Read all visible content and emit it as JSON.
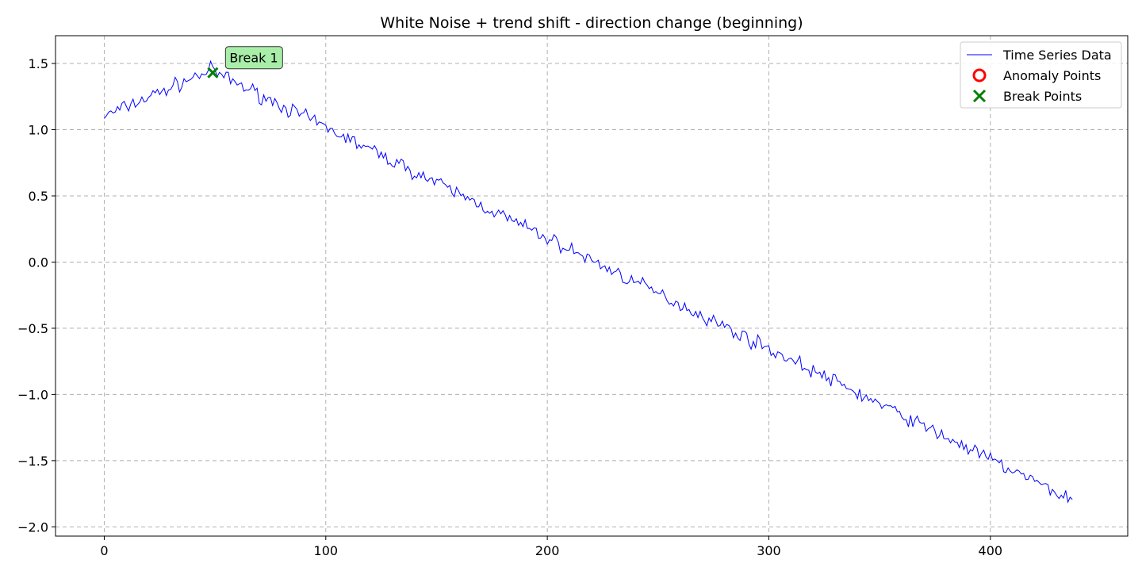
{
  "chart_data": {
    "type": "line",
    "title": "White Noise + trend shift - direction change (beginning)",
    "xlabel": "",
    "ylabel": "",
    "xlim": [
      -22,
      462
    ],
    "ylim": [
      -2.07,
      1.71
    ],
    "xticks": [
      0,
      100,
      200,
      300,
      400
    ],
    "xtick_labels": [
      "0",
      "100",
      "200",
      "300",
      "400"
    ],
    "yticks": [
      -2.0,
      -1.5,
      -1.0,
      -0.5,
      0.0,
      0.5,
      1.0,
      1.5
    ],
    "ytick_labels": [
      "−2.0",
      "−1.5",
      "−1.0",
      "−0.5",
      "0.0",
      "0.5",
      "1.0",
      "1.5"
    ],
    "grid": true,
    "legend_position": "top-right",
    "series": [
      {
        "name": "Time Series Data",
        "color": "#0000ff",
        "trend": {
          "start_x": 0,
          "start_y": 1.1,
          "peak_x": 48,
          "peak_y": 1.45,
          "end_x": 437,
          "end_y": -1.8,
          "noise": 0.06
        }
      }
    ],
    "anomaly_points": {
      "name": "Anomaly Points",
      "color": "#ff0000",
      "points": []
    },
    "break_points": {
      "name": "Break Points",
      "color": "#008000",
      "points": [
        {
          "x": 49,
          "y": 1.43
        }
      ]
    },
    "annotations": [
      {
        "text": "Break 1",
        "x": 49,
        "y": 1.43,
        "box_color": "#a8eea8"
      }
    ],
    "legend": [
      "Time Series Data",
      "Anomaly Points",
      "Break Points"
    ]
  }
}
